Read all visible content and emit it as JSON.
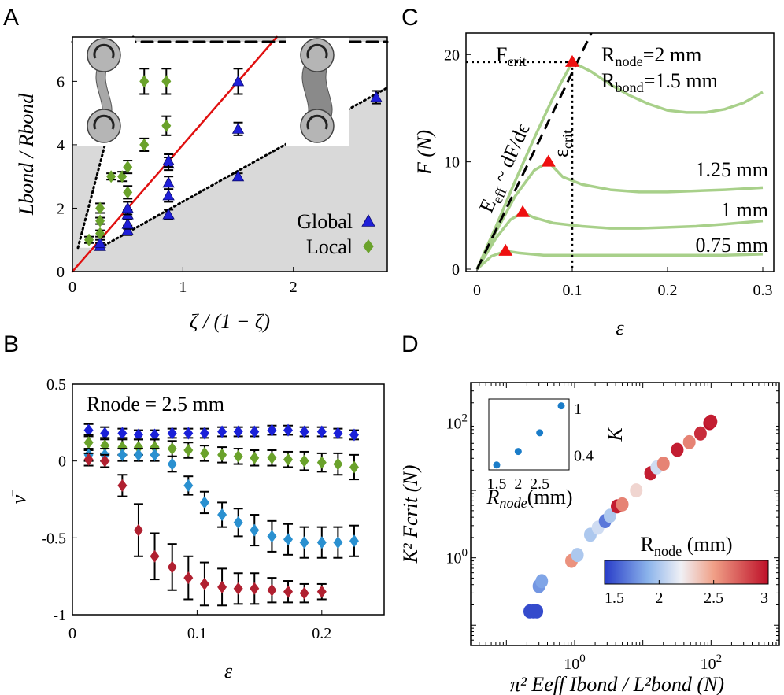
{
  "panels": {
    "A": "A",
    "B": "B",
    "C": "C",
    "D": "D"
  },
  "chart_data": [
    {
      "panel": "A",
      "type": "scatter",
      "xlabel": "ζ / (1 − ζ)",
      "ylabel": "Lbond / Rbond",
      "xlim": [
        0,
        2.85
      ],
      "ylim": [
        0,
        7.4
      ],
      "xticks": [
        "0",
        "1",
        "2"
      ],
      "yticks": [
        "0",
        "2",
        "4",
        "6"
      ],
      "grid": false,
      "legend_position": "bottom-right",
      "series": [
        {
          "name": "Global",
          "color": "#1f1fd8",
          "marker": "triangle",
          "points": [
            [
              0.25,
              0.8
            ],
            [
              0.25,
              0.9
            ],
            [
              0.5,
              1.3
            ],
            [
              0.5,
              1.5
            ],
            [
              0.5,
              1.8
            ],
            [
              0.5,
              2.0
            ],
            [
              0.87,
              1.8
            ],
            [
              0.87,
              2.4
            ],
            [
              0.87,
              2.8
            ],
            [
              0.87,
              3.4
            ],
            [
              0.87,
              3.5
            ],
            [
              1.5,
              3.0
            ],
            [
              1.5,
              4.5
            ],
            [
              1.5,
              6.0
            ],
            [
              2.75,
              5.5
            ]
          ],
          "err": [
            0.1,
            0.1,
            0.15,
            0.15,
            0.15,
            0.2,
            0.15,
            0.2,
            0.2,
            0.2,
            0.2,
            0.1,
            0.2,
            0.4,
            0.2
          ]
        },
        {
          "name": "Local",
          "color": "#6aa22b",
          "marker": "diamond",
          "points": [
            [
              0.15,
              1.0
            ],
            [
              0.25,
              1.2
            ],
            [
              0.25,
              1.6
            ],
            [
              0.25,
              2.0
            ],
            [
              0.35,
              3.0
            ],
            [
              0.45,
              3.0
            ],
            [
              0.5,
              2.5
            ],
            [
              0.5,
              3.3
            ],
            [
              0.65,
              4.0
            ],
            [
              0.65,
              6.0
            ],
            [
              0.85,
              4.6
            ],
            [
              0.85,
              6.0
            ]
          ],
          "err": [
            0.1,
            0.1,
            0.1,
            0.15,
            0.1,
            0.15,
            0.2,
            0.2,
            0.2,
            0.4,
            0.3,
            0.4
          ]
        }
      ],
      "lines": [
        {
          "style": "solid",
          "color": "#e01010",
          "points": [
            [
              0,
              0
            ],
            [
              1.85,
              7.4
            ]
          ]
        },
        {
          "style": "dotted",
          "color": "#000000",
          "points": [
            [
              0.25,
              0.75
            ],
            [
              2.85,
              5.8
            ]
          ]
        },
        {
          "style": "dotted",
          "color": "#000000",
          "points": [
            [
              0.05,
              0.75
            ],
            [
              0.55,
              7.4
            ]
          ]
        },
        {
          "style": "dashed",
          "color": "#000000",
          "points": [
            [
              0,
              7.25
            ],
            [
              2.85,
              7.25
            ]
          ]
        }
      ]
    },
    {
      "panel": "B",
      "type": "scatter",
      "title": "Rnode = 2.5 mm",
      "xlabel": "ε",
      "ylabel": "ν̄",
      "xlim": [
        0,
        0.25
      ],
      "ylim": [
        -1,
        0.5
      ],
      "xticks": [
        "0",
        "0.1",
        "0.2"
      ],
      "yticks": [
        "0.5",
        "0",
        "-0.5",
        "-1"
      ],
      "grid": false,
      "series": [
        {
          "color": "#1a20d8",
          "marker": "diamond",
          "x": [
            0.013,
            0.026,
            0.04,
            0.053,
            0.066,
            0.08,
            0.093,
            0.106,
            0.12,
            0.133,
            0.146,
            0.16,
            0.173,
            0.186,
            0.2,
            0.213,
            0.226
          ],
          "values": [
            0.2,
            0.18,
            0.18,
            0.17,
            0.17,
            0.18,
            0.18,
            0.18,
            0.19,
            0.19,
            0.19,
            0.2,
            0.2,
            0.19,
            0.19,
            0.18,
            0.17
          ],
          "err": [
            0.04,
            0.04,
            0.03,
            0.03,
            0.03,
            0.03,
            0.03,
            0.03,
            0.03,
            0.03,
            0.03,
            0.03,
            0.03,
            0.03,
            0.03,
            0.03,
            0.03
          ]
        },
        {
          "color": "#6aa22b",
          "marker": "diamond",
          "x": [
            0.013,
            0.026,
            0.04,
            0.053,
            0.066,
            0.08,
            0.093,
            0.106,
            0.12,
            0.133,
            0.146,
            0.16,
            0.173,
            0.186,
            0.2,
            0.213,
            0.226
          ],
          "values": [
            0.12,
            0.1,
            0.09,
            0.09,
            0.09,
            0.08,
            0.07,
            0.05,
            0.04,
            0.03,
            0.02,
            0.02,
            0.01,
            0.0,
            -0.01,
            -0.02,
            -0.04
          ],
          "err": [
            0.05,
            0.05,
            0.05,
            0.05,
            0.05,
            0.05,
            0.05,
            0.05,
            0.05,
            0.05,
            0.05,
            0.05,
            0.05,
            0.06,
            0.06,
            0.07,
            0.08
          ]
        },
        {
          "color": "#2a90d0",
          "marker": "diamond",
          "x": [
            0.013,
            0.026,
            0.04,
            0.053,
            0.066,
            0.08,
            0.093,
            0.106,
            0.12,
            0.133,
            0.146,
            0.16,
            0.173,
            0.186,
            0.2,
            0.213,
            0.226
          ],
          "values": [
            0.04,
            0.04,
            0.04,
            0.04,
            0.04,
            -0.02,
            -0.16,
            -0.27,
            -0.35,
            -0.4,
            -0.45,
            -0.49,
            -0.51,
            -0.53,
            -0.53,
            -0.53,
            -0.52
          ],
          "err": [
            0.04,
            0.04,
            0.04,
            0.04,
            0.04,
            0.05,
            0.06,
            0.07,
            0.08,
            0.09,
            0.1,
            0.1,
            0.1,
            0.1,
            0.1,
            0.1,
            0.1
          ]
        },
        {
          "color": "#b02030",
          "marker": "diamond",
          "x": [
            0.013,
            0.026,
            0.04,
            0.053,
            0.066,
            0.08,
            0.093,
            0.106,
            0.12,
            0.133,
            0.146,
            0.16,
            0.173,
            0.186,
            0.2
          ],
          "values": [
            0.01,
            0.0,
            -0.16,
            -0.45,
            -0.62,
            -0.69,
            -0.76,
            -0.8,
            -0.82,
            -0.83,
            -0.83,
            -0.84,
            -0.85,
            -0.86,
            -0.85
          ],
          "err": [
            0.04,
            0.04,
            0.07,
            0.17,
            0.15,
            0.15,
            0.14,
            0.14,
            0.12,
            0.1,
            0.1,
            0.08,
            0.07,
            0.06,
            0.05
          ]
        }
      ]
    },
    {
      "panel": "C",
      "type": "line",
      "xlabel": "ε",
      "ylabel": "F (N)",
      "xlim": [
        0,
        0.3
      ],
      "ylim": [
        0,
        22
      ],
      "xticks": [
        "0",
        "0.1",
        "0.2",
        "0.3"
      ],
      "yticks": [
        "0",
        "10",
        "20"
      ],
      "grid": false,
      "series": [
        {
          "name": "Rbond=1.5 mm",
          "color": "#a8d08a",
          "x": [
            0,
            0.02,
            0.04,
            0.06,
            0.08,
            0.1,
            0.12,
            0.14,
            0.16,
            0.18,
            0.2,
            0.22,
            0.24,
            0.26,
            0.28,
            0.3
          ],
          "values": [
            0,
            4.0,
            8.2,
            12.2,
            16.0,
            19.3,
            18.4,
            17.2,
            16.2,
            15.4,
            14.8,
            14.6,
            14.6,
            14.9,
            15.5,
            16.5
          ]
        },
        {
          "name": "1.25 mm",
          "color": "#a8d08a",
          "x": [
            0,
            0.02,
            0.04,
            0.06,
            0.075,
            0.09,
            0.11,
            0.14,
            0.17,
            0.2,
            0.23,
            0.26,
            0.3
          ],
          "values": [
            0,
            3.5,
            6.8,
            9.2,
            10.0,
            8.6,
            7.9,
            7.4,
            7.2,
            7.2,
            7.3,
            7.4,
            7.6
          ]
        },
        {
          "name": "1 mm",
          "color": "#a8d08a",
          "x": [
            0,
            0.02,
            0.035,
            0.048,
            0.06,
            0.08,
            0.11,
            0.14,
            0.17,
            0.2,
            0.23,
            0.26,
            0.3
          ],
          "values": [
            0,
            2.9,
            4.6,
            5.3,
            4.8,
            4.3,
            4.0,
            3.8,
            3.8,
            3.9,
            4.0,
            4.2,
            4.5
          ]
        },
        {
          "name": "0.75 mm",
          "color": "#a8d08a",
          "x": [
            0,
            0.015,
            0.03,
            0.045,
            0.07,
            0.1,
            0.14,
            0.18,
            0.22,
            0.26,
            0.3
          ],
          "values": [
            0,
            1.2,
            1.7,
            1.5,
            1.3,
            1.3,
            1.3,
            1.3,
            1.3,
            1.3,
            1.4
          ]
        }
      ],
      "peaks": {
        "x": [
          0.1,
          0.075,
          0.048,
          0.03
        ],
        "values": [
          19.3,
          10.0,
          5.3,
          1.7
        ],
        "color": "#ee1010"
      },
      "fit_line": {
        "style": "dashed",
        "points": [
          [
            0,
            0
          ],
          [
            0.12,
            22
          ]
        ]
      },
      "annotations": {
        "fcrit": "F",
        "fcrit_sub": "crit",
        "ecrit": "ε",
        "ecrit_sub": "crit",
        "eeff": "E",
        "eeff_sub": "eff",
        "eeff_rest": " ~ dF/dϵ",
        "rnode": "R",
        "rnode_sub": "node",
        "rnode_val": "=2 mm",
        "rbond": "R",
        "rbond_sub": "bond",
        "rbond_val": "=1.5 mm",
        "l125": "1.25 mm",
        "l1": "1 mm",
        "l075": "0.75 mm"
      }
    },
    {
      "panel": "D",
      "type": "scatter",
      "xscale": "log",
      "yscale": "log",
      "xlabel": "π² Eeff Ibond / L²bond (N)",
      "ylabel": "K² Fcrit (N)",
      "xlim": [
        0.03,
        1000
      ],
      "ylim": [
        0.05,
        400
      ],
      "xticks": [
        "10^0",
        "10^2"
      ],
      "yticks": [
        "10^0",
        "10^2"
      ],
      "grid": false,
      "colorbar": {
        "title": "Rnode (mm)",
        "ticks": [
          "1.5",
          "2",
          "2.5",
          "3"
        ],
        "range": [
          1.5,
          3
        ]
      },
      "points": [
        {
          "x": 0.22,
          "y": 0.16,
          "r": 1.55
        },
        {
          "x": 0.25,
          "y": 0.16,
          "r": 1.55
        },
        {
          "x": 0.28,
          "y": 0.16,
          "r": 1.55
        },
        {
          "x": 0.3,
          "y": 0.38,
          "r": 1.8
        },
        {
          "x": 0.33,
          "y": 0.45,
          "r": 1.85
        },
        {
          "x": 0.9,
          "y": 0.9,
          "r": 2.55
        },
        {
          "x": 1.1,
          "y": 1.1,
          "r": 2.0
        },
        {
          "x": 1.7,
          "y": 2.2,
          "r": 2.0
        },
        {
          "x": 2.2,
          "y": 2.8,
          "r": 2.1
        },
        {
          "x": 2.8,
          "y": 3.5,
          "r": 1.7
        },
        {
          "x": 3.3,
          "y": 4.2,
          "r": 2.0
        },
        {
          "x": 4.2,
          "y": 5.8,
          "r": 2.95
        },
        {
          "x": 5.0,
          "y": 6.2,
          "r": 2.6
        },
        {
          "x": 8.0,
          "y": 10.0,
          "r": 2.3
        },
        {
          "x": 13,
          "y": 18,
          "r": 2.95
        },
        {
          "x": 16,
          "y": 22,
          "r": 2.1
        },
        {
          "x": 20,
          "y": 25,
          "r": 2.6
        },
        {
          "x": 32,
          "y": 40,
          "r": 2.95
        },
        {
          "x": 48,
          "y": 52,
          "r": 2.6
        },
        {
          "x": 70,
          "y": 70,
          "r": 2.9
        },
        {
          "x": 95,
          "y": 100,
          "r": 3.0
        },
        {
          "x": 100,
          "y": 105,
          "r": 2.95
        }
      ],
      "inset": {
        "xlabel": "Rnode(mm)",
        "ylabel": "K",
        "xticks": [
          "1.5",
          "2",
          "2.5"
        ],
        "yticks": [
          "1",
          "0.4"
        ],
        "x": [
          1.5,
          2.0,
          2.5,
          3.0
        ],
        "values": [
          0.33,
          0.43,
          0.62,
          1.05
        ],
        "color": "#1a7cc8"
      }
    }
  ]
}
